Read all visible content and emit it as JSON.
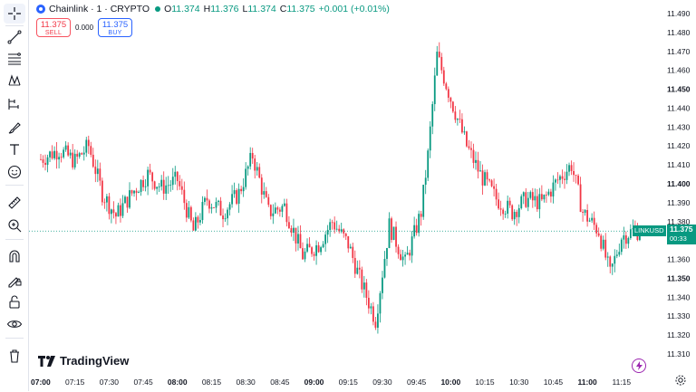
{
  "legend": {
    "symbol": "Chainlink · 1 · CRYPTO",
    "open_label": "O",
    "open": "11.374",
    "high_label": "H",
    "high": "11.376",
    "low_label": "L",
    "low": "11.374",
    "close_label": "C",
    "close": "11.375",
    "change": "+0.001 (+0.01%)"
  },
  "trade": {
    "sell_price": "11.375",
    "sell_label": "SELL",
    "spread": "0.000",
    "buy_price": "11.375",
    "buy_label": "BUY"
  },
  "price_axis": {
    "ticks": [
      "11.490",
      "11.480",
      "11.470",
      "11.460",
      "11.450",
      "11.440",
      "11.430",
      "11.420",
      "11.410",
      "11.400",
      "11.390",
      "11.380",
      "11.370",
      "11.360",
      "11.350",
      "11.340",
      "11.330",
      "11.320",
      "11.310"
    ],
    "bold_ticks": [
      "11.450",
      "11.400",
      "11.350"
    ]
  },
  "time_axis": {
    "ticks": [
      "07:00",
      "07:15",
      "07:30",
      "07:45",
      "08:00",
      "08:15",
      "08:30",
      "08:45",
      "09:00",
      "09:15",
      "09:30",
      "09:45",
      "10:00",
      "10:15",
      "10:30",
      "10:45",
      "11:00",
      "11:15"
    ],
    "bold_ticks": [
      "07:00",
      "08:00",
      "09:00",
      "10:00",
      "11:00"
    ]
  },
  "price_label": {
    "ticker": "LINKUSD",
    "value": "11.375",
    "countdown": "00:33"
  },
  "watermark": "TradingView",
  "colors": {
    "up": "#089981",
    "down": "#f23645",
    "accent": "#2962ff"
  },
  "toolbar_icons": [
    "crosshair-icon",
    "trend-line-icon",
    "fib-icon",
    "pattern-icon",
    "forecast-icon",
    "brush-icon",
    "text-icon",
    "emoji-icon",
    "ruler-icon",
    "zoom-icon",
    "magnet-icon",
    "lock-drawing-icon",
    "unlock-icon",
    "eye-icon",
    "trash-icon"
  ],
  "chart_data": {
    "type": "candlestick",
    "symbol": "LINKUSD",
    "interval": "1",
    "ylim": [
      11.305,
      11.495
    ],
    "x_start": "07:00",
    "x_end": "11:23",
    "current_price": 11.375,
    "close_path": [
      [
        "07:00",
        11.413
      ],
      [
        "07:08",
        11.418
      ],
      [
        "07:15",
        11.412
      ],
      [
        "07:21",
        11.42
      ],
      [
        "07:27",
        11.395
      ],
      [
        "07:33",
        11.383
      ],
      [
        "07:40",
        11.395
      ],
      [
        "07:47",
        11.405
      ],
      [
        "07:53",
        11.398
      ],
      [
        "08:00",
        11.402
      ],
      [
        "08:07",
        11.375
      ],
      [
        "08:13",
        11.392
      ],
      [
        "08:20",
        11.385
      ],
      [
        "08:27",
        11.395
      ],
      [
        "08:33",
        11.415
      ],
      [
        "08:40",
        11.385
      ],
      [
        "08:47",
        11.388
      ],
      [
        "08:55",
        11.362
      ],
      [
        "09:02",
        11.368
      ],
      [
        "09:08",
        11.38
      ],
      [
        "09:15",
        11.368
      ],
      [
        "09:20",
        11.35
      ],
      [
        "09:27",
        11.328
      ],
      [
        "09:33",
        11.378
      ],
      [
        "09:40",
        11.358
      ],
      [
        "09:47",
        11.385
      ],
      [
        "09:50",
        11.415
      ],
      [
        "09:54",
        11.468
      ],
      [
        "10:00",
        11.445
      ],
      [
        "10:07",
        11.42
      ],
      [
        "10:13",
        11.405
      ],
      [
        "10:20",
        11.392
      ],
      [
        "10:27",
        11.385
      ],
      [
        "10:33",
        11.392
      ],
      [
        "10:40",
        11.39
      ],
      [
        "10:47",
        11.402
      ],
      [
        "10:53",
        11.41
      ],
      [
        "10:58",
        11.385
      ],
      [
        "11:05",
        11.375
      ],
      [
        "11:10",
        11.352
      ],
      [
        "11:15",
        11.372
      ],
      [
        "11:20",
        11.375
      ]
    ]
  }
}
